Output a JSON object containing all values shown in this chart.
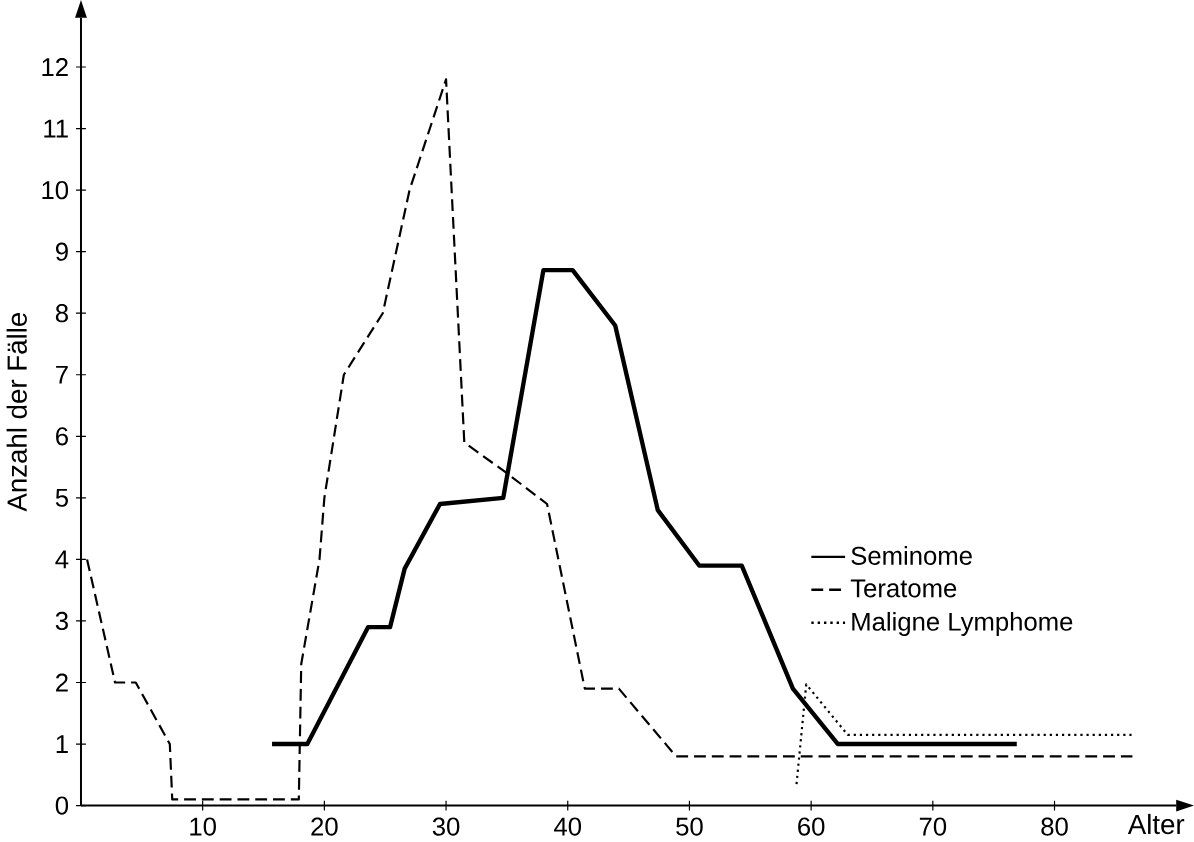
{
  "chart_data": {
    "type": "line",
    "xlabel": "Alter",
    "ylabel": "Anzahl der Fälle",
    "xlim": [
      0,
      90
    ],
    "ylim": [
      0,
      12.8
    ],
    "xticks": [
      10,
      20,
      30,
      40,
      50,
      60,
      70,
      80
    ],
    "yticks": [
      0,
      1,
      2,
      3,
      4,
      5,
      6,
      7,
      8,
      9,
      10,
      11,
      12
    ],
    "grid": false,
    "legend": "right",
    "marker": "none",
    "series": [
      {
        "name": "Seminome",
        "color": "#000000",
        "line_style": "solid",
        "x": [
          15.7,
          18.6,
          23.6,
          25.4,
          26.6,
          29.5,
          34.7,
          38,
          40.4,
          43.9,
          47.4,
          50.8,
          54.3,
          58.5,
          62.2,
          76.9
        ],
        "values": [
          1,
          1,
          2.9,
          2.9,
          3.85,
          4.9,
          5,
          8.7,
          8.7,
          7.8,
          4.8,
          3.9,
          3.9,
          1.9,
          1,
          1
        ]
      },
      {
        "name": "Teratome",
        "color": "#000000",
        "line_style": "dashed",
        "x": [
          0.5,
          2.8,
          4.5,
          7.3,
          7.5,
          17.9,
          18.1,
          19.6,
          20,
          21.6,
          24.8,
          27,
          30,
          31.5,
          35,
          38.3,
          41.4,
          44.2,
          48.9,
          86.4
        ],
        "values": [
          4,
          2,
          2,
          1,
          0.1,
          0.1,
          2.3,
          4,
          5,
          7,
          8,
          10,
          11.8,
          5.9,
          5.4,
          4.9,
          1.9,
          1.9,
          0.8,
          0.8
        ]
      },
      {
        "name": "Maligne Lymphome",
        "color": "#000000",
        "line_style": "dotted",
        "x": [
          58.8,
          59.6,
          63,
          86.4
        ],
        "values": [
          0.35,
          1.97,
          1.15,
          1.15
        ]
      }
    ]
  }
}
